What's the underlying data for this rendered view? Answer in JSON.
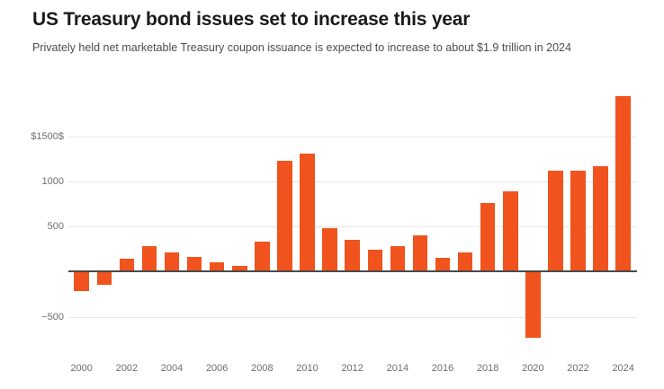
{
  "header": {
    "title": "US Treasury bond issues set to increase this year",
    "subtitle": "Privately held net marketable Treasury coupon issuance is expected to increase to about $1.9 trillion in 2024"
  },
  "colors": {
    "bar": "#f0531d",
    "axis_line": "#4a4a4a",
    "gridline": "#e8e8e8",
    "tick_label": "#6e6e6e",
    "title": "#1a1a1a",
    "subtitle": "#4d4d4d",
    "background": "#ffffff"
  },
  "chart_data": {
    "type": "bar",
    "title": "US Treasury bond issues set to increase this year",
    "subtitle": "Privately held net marketable Treasury coupon issuance is expected to increase to about $1.9 trillion in 2024",
    "x": [
      2000,
      2001,
      2002,
      2003,
      2004,
      2005,
      2006,
      2007,
      2008,
      2009,
      2010,
      2011,
      2012,
      2013,
      2014,
      2015,
      2016,
      2017,
      2018,
      2019,
      2020,
      2021,
      2022,
      2023,
      2024
    ],
    "values": [
      -220,
      -150,
      140,
      280,
      215,
      165,
      105,
      60,
      335,
      1225,
      1310,
      480,
      350,
      240,
      285,
      400,
      155,
      210,
      760,
      890,
      -730,
      1120,
      1120,
      1165,
      1950
    ],
    "xlabel": "",
    "ylabel": "",
    "ylim": [
      -750,
      1975
    ],
    "ytick_values": [
      1500,
      1000,
      500,
      0,
      -500
    ],
    "ytick_labels": [
      "$1500$",
      "1000",
      "500",
      "",
      "−500"
    ],
    "xtick_labels": [
      "2000",
      "2002",
      "2004",
      "2006",
      "2008",
      "2010",
      "2012",
      "2014",
      "2016",
      "2018",
      "2020",
      "2022",
      "2024"
    ],
    "grid": true,
    "legend_position": "none"
  }
}
